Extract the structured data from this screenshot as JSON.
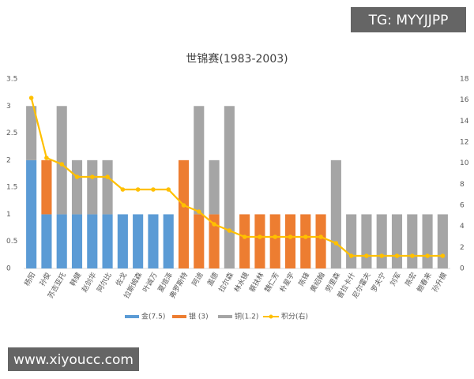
{
  "chart_data": {
    "type": "bar",
    "stacked": true,
    "title": "世锦赛(1983-2003)",
    "categories": [
      "杨阳",
      "孙俊",
      "苏吉亚托",
      "韩健",
      "赵剑华",
      "阿尔比",
      "佐戈",
      "拉斯姆森",
      "叶诚万",
      "夏煊泽",
      "弗罗斯特",
      "阿迪",
      "盖德",
      "拉尔森",
      "林水镜",
      "蔡扶林",
      "魏仁芳",
      "朴星宇",
      "陈锋",
      "黄绍翰",
      "劳里森",
      "普拉卡什",
      "尼尔霍夫",
      "罗夫宁",
      "刘军",
      "陈宏",
      "鲍春来",
      "孙升模"
    ],
    "series": [
      {
        "name": "金(7.5)",
        "color": "#5b9bd5",
        "values": [
          2,
          1,
          1,
          1,
          1,
          1,
          1,
          1,
          1,
          1,
          0,
          0,
          0,
          0,
          0,
          0,
          0,
          0,
          0,
          0,
          0,
          0,
          0,
          0,
          0,
          0,
          0,
          0
        ]
      },
      {
        "name": "银 (3)",
        "color": "#ed7d31",
        "values": [
          0,
          1,
          0,
          0,
          0,
          0,
          0,
          0,
          0,
          0,
          2,
          1,
          1,
          0,
          1,
          1,
          1,
          1,
          1,
          1,
          0,
          0,
          0,
          0,
          0,
          0,
          0,
          0
        ]
      },
      {
        "name": "铜(1.2)",
        "color": "#a5a5a5",
        "values": [
          1,
          0,
          2,
          1,
          1,
          1,
          0,
          0,
          0,
          0,
          0,
          2,
          1,
          3,
          0,
          0,
          0,
          0,
          0,
          0,
          2,
          1,
          1,
          1,
          1,
          1,
          1,
          1
        ]
      },
      {
        "name": "积分(右)",
        "color": "#ffc000",
        "axis": "y2",
        "values": [
          16.2,
          10.5,
          9.9,
          8.7,
          8.7,
          8.7,
          7.5,
          7.5,
          7.5,
          7.5,
          6,
          5.4,
          4.2,
          3.6,
          3,
          3,
          3,
          3,
          3,
          3,
          2.4,
          1.2,
          1.2,
          1.2,
          1.2,
          1.2,
          1.2,
          1.2
        ]
      }
    ],
    "ylim": [
      0,
      3.5
    ],
    "yticks": [
      0,
      0.5,
      1,
      1.5,
      2,
      2.5,
      3,
      3.5
    ],
    "y2lim": [
      0,
      18
    ],
    "y2ticks": [
      0,
      2,
      4,
      6,
      8,
      10,
      12,
      14,
      16,
      18
    ],
    "grid": false,
    "legend": "bottom"
  },
  "overlay": {
    "top_right": "TG: MYYJJPP",
    "bottom_left": "www.xiyoucc.com"
  }
}
